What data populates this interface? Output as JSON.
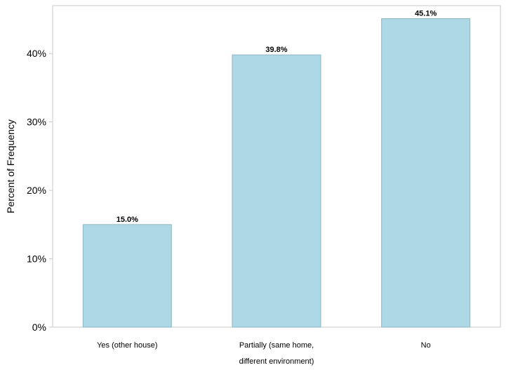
{
  "chart_data": {
    "type": "bar",
    "categories": [
      [
        "Yes (other house)"
      ],
      [
        "Partially (same home,",
        "different environment)"
      ],
      [
        "No"
      ]
    ],
    "values": [
      15.0,
      39.8,
      45.1
    ],
    "data_labels": [
      "15.0%",
      "39.8%",
      "45.1%"
    ],
    "ylabel": "Percent of Frequency",
    "ylim": [
      0,
      47
    ],
    "yticks": [
      0,
      10,
      20,
      30,
      40
    ],
    "ytick_labels": [
      "0%",
      "10%",
      "20%",
      "30%",
      "40%"
    ],
    "grid": false,
    "colors": {
      "bar_fill": "#add8e6",
      "bar_stroke": "#8fb6c2",
      "frame": "#c8c8c8",
      "text": "#000000"
    }
  }
}
